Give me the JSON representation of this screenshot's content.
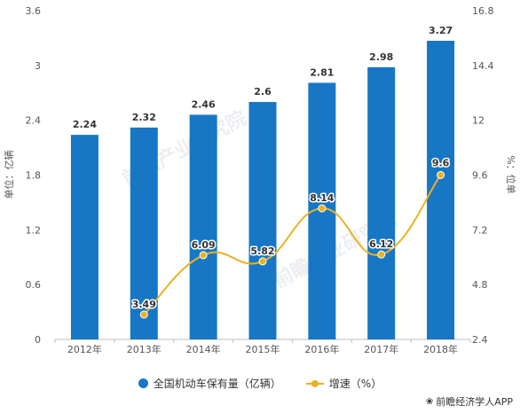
{
  "chart_data": {
    "type": "bar",
    "categories": [
      "2012年",
      "2013年",
      "2014年",
      "2015年",
      "2016年",
      "2017年",
      "2018年"
    ],
    "series": [
      {
        "name": "全国机动车保有量（亿辆）",
        "type": "bar",
        "axis": "left",
        "color": "#1777c4",
        "values": [
          2.24,
          2.32,
          2.46,
          2.6,
          2.81,
          2.98,
          3.27
        ],
        "labels": [
          "2.24",
          "2.32",
          "2.46",
          "2.6",
          "2.81",
          "2.98",
          "3.27"
        ]
      },
      {
        "name": "增速（%）",
        "type": "line",
        "axis": "right",
        "color": "#eab223",
        "values": [
          null,
          3.49,
          6.09,
          5.82,
          8.14,
          6.12,
          9.6
        ],
        "labels": [
          "",
          "3.49",
          "6.09",
          "5.82",
          "8.14",
          "6.12",
          "9.6"
        ]
      }
    ],
    "ylabel_left": "单位：亿辆",
    "ylabel_right": "%：位单",
    "ylim_left": [
      0,
      3.6
    ],
    "yticks_left": [
      "0",
      "0.6",
      "1.2",
      "1.8",
      "2.4",
      "3",
      "3.6"
    ],
    "ylim_right": [
      2.4,
      16.8
    ],
    "yticks_right": [
      "2.4",
      "4.8",
      "7.2",
      "9.6",
      "12",
      "14.4",
      "16.8"
    ],
    "grid": false,
    "legend_position": "bottom-center"
  },
  "legend": {
    "bar_label": "全国机动车保有量（亿辆）",
    "line_label": "增速（%）"
  },
  "footer": {
    "source": "前瞻经济学人APP"
  },
  "watermark": {
    "text": "前瞻产业研究院"
  }
}
